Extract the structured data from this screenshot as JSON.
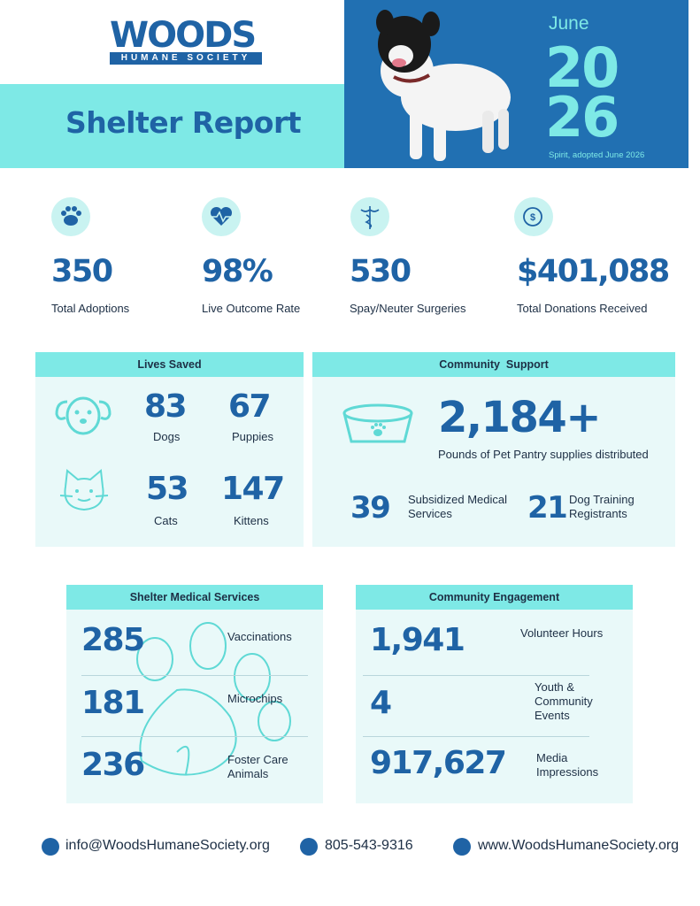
{
  "header": {
    "logo": {
      "name": "WOODS",
      "subtitle": "HUMANE SOCIETY"
    },
    "title": "Shelter Report",
    "month": "June",
    "year_top": "20",
    "year_bottom": "26",
    "photo_caption": "Spirit, adopted June 2026"
  },
  "stats": [
    {
      "value": "350",
      "label": "Total Adoptions"
    },
    {
      "value": "98%",
      "label": "Live Outcome Rate"
    },
    {
      "value": "530",
      "label": "Spay/Neuter Surgeries"
    },
    {
      "value": "$401,088",
      "label": "Total Donations Received"
    }
  ],
  "lives_saved": {
    "title": "Lives Saved",
    "items": [
      {
        "value": "83",
        "label": "Dogs"
      },
      {
        "value": "67",
        "label": "Puppies"
      },
      {
        "value": "53",
        "label": "Cats"
      },
      {
        "value": "147",
        "label": "Kittens"
      }
    ]
  },
  "community_support": {
    "title": "Community  Support",
    "headline": {
      "value": "2,184+",
      "label": "Pounds of Pet Pantry supplies distributed"
    },
    "items": [
      {
        "value": "39",
        "label": "Subsidized Medical Services"
      },
      {
        "value": "21",
        "label": "Dog Training Registrants"
      }
    ]
  },
  "medical": {
    "title": "Shelter Medical Services",
    "items": [
      {
        "value": "285",
        "label": "Vaccinations"
      },
      {
        "value": "181",
        "label": "Microchips"
      },
      {
        "value": "236",
        "label": "Foster Care Animals"
      }
    ]
  },
  "engagement": {
    "title": "Community Engagement",
    "items": [
      {
        "value": "1,941",
        "label": "Volunteer Hours"
      },
      {
        "value": "4",
        "label": "Youth & Community Events"
      },
      {
        "value": "917,627",
        "label": "Media Impressions"
      }
    ]
  },
  "footer": {
    "email": "info@WoodsHumaneSociety.org",
    "phone": "805-543-9316",
    "website": "www.WoodsHumaneSociety.org"
  }
}
